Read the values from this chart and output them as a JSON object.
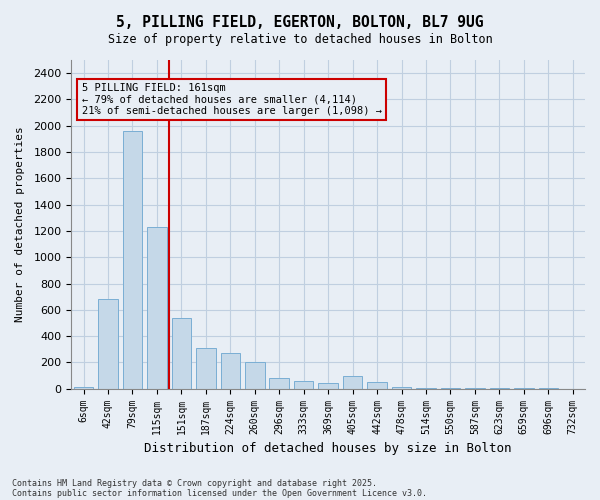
{
  "title_line1": "5, PILLING FIELD, EGERTON, BOLTON, BL7 9UG",
  "title_line2": "Size of property relative to detached houses in Bolton",
  "xlabel": "Distribution of detached houses by size in Bolton",
  "ylabel": "Number of detached properties",
  "bins": [
    "6sqm",
    "42sqm",
    "79sqm",
    "115sqm",
    "151sqm",
    "187sqm",
    "224sqm",
    "260sqm",
    "296sqm",
    "333sqm",
    "369sqm",
    "405sqm",
    "442sqm",
    "478sqm",
    "514sqm",
    "550sqm",
    "587sqm",
    "623sqm",
    "659sqm",
    "696sqm",
    "732sqm"
  ],
  "values": [
    15,
    680,
    1960,
    1230,
    540,
    310,
    270,
    200,
    85,
    60,
    45,
    95,
    50,
    15,
    8,
    3,
    3,
    3,
    3,
    3,
    0
  ],
  "bar_color": "#c5d8e8",
  "bar_edgecolor": "#7aaed4",
  "grid_color": "#c0cfe0",
  "bg_color": "#e8eef5",
  "vline_x_index": 4,
  "vline_color": "#cc0000",
  "annotation_text": "5 PILLING FIELD: 161sqm\n← 79% of detached houses are smaller (4,114)\n21% of semi-detached houses are larger (1,098) →",
  "annotation_box_color": "#cc0000",
  "footer_line1": "Contains HM Land Registry data © Crown copyright and database right 2025.",
  "footer_line2": "Contains public sector information licensed under the Open Government Licence v3.0.",
  "ylim": [
    0,
    2500
  ],
  "yticks": [
    0,
    200,
    400,
    600,
    800,
    1000,
    1200,
    1400,
    1600,
    1800,
    2000,
    2200,
    2400
  ]
}
